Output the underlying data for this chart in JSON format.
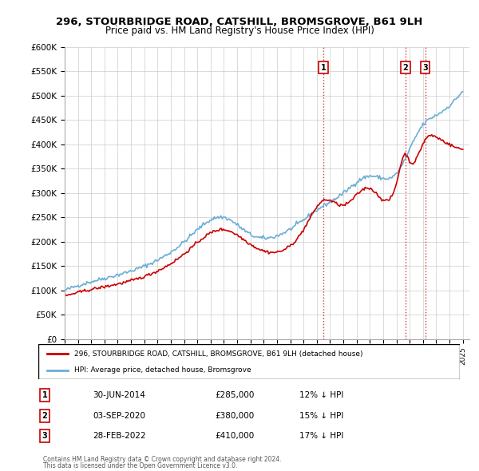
{
  "title": "296, STOURBRIDGE ROAD, CATSHILL, BROMSGROVE, B61 9LH",
  "subtitle": "Price paid vs. HM Land Registry's House Price Index (HPI)",
  "ylabel_ticks": [
    "£0",
    "£50K",
    "£100K",
    "£150K",
    "£200K",
    "£250K",
    "£300K",
    "£350K",
    "£400K",
    "£450K",
    "£500K",
    "£550K",
    "£600K"
  ],
  "ytick_values": [
    0,
    50000,
    100000,
    150000,
    200000,
    250000,
    300000,
    350000,
    400000,
    450000,
    500000,
    550000,
    600000
  ],
  "hpi_color": "#6baed6",
  "sale_color": "#cc0000",
  "dashed_color": "#cc0000",
  "sale_points": [
    {
      "date_x": 2014.5,
      "price": 285000,
      "label": "1"
    },
    {
      "date_x": 2020.67,
      "price": 380000,
      "label": "2"
    },
    {
      "date_x": 2022.17,
      "price": 410000,
      "label": "3"
    }
  ],
  "legend_house_label": "296, STOURBRIDGE ROAD, CATSHILL, BROMSGROVE, B61 9LH (detached house)",
  "legend_hpi_label": "HPI: Average price, detached house, Bromsgrove",
  "table_rows": [
    {
      "num": "1",
      "date": "30-JUN-2014",
      "price": "£285,000",
      "pct": "12% ↓ HPI"
    },
    {
      "num": "2",
      "date": "03-SEP-2020",
      "price": "£380,000",
      "pct": "15% ↓ HPI"
    },
    {
      "num": "3",
      "date": "28-FEB-2022",
      "price": "£410,000",
      "pct": "17% ↓ HPI"
    }
  ],
  "footnote1": "Contains HM Land Registry data © Crown copyright and database right 2024.",
  "footnote2": "This data is licensed under the Open Government Licence v3.0.",
  "xmin": 1995,
  "xmax": 2025.5,
  "ymin": 0,
  "ymax": 600000
}
